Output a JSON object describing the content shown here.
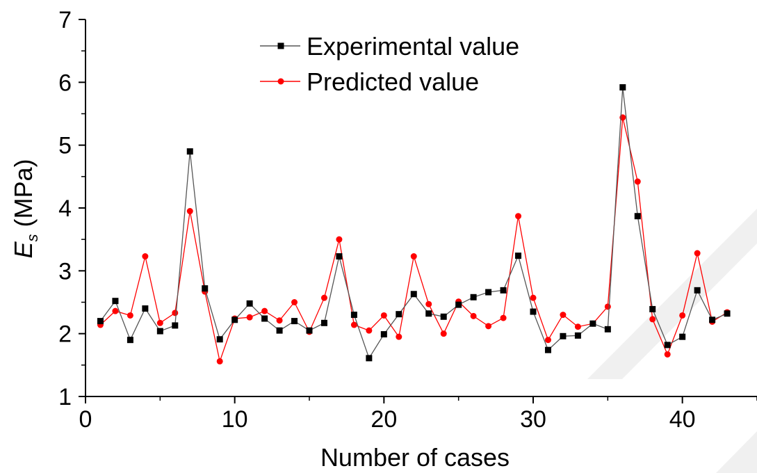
{
  "chart_data": {
    "type": "line",
    "xlabel": "Number of cases",
    "ylabel": {
      "symbol": "E",
      "subscript": "s",
      "unit": "(MPa)"
    },
    "xlim": [
      0,
      45
    ],
    "ylim": [
      1,
      7
    ],
    "xticks": [
      "0",
      "10",
      "20",
      "30",
      "40"
    ],
    "yticks": [
      "1",
      "2",
      "3",
      "4",
      "5",
      "6",
      "7"
    ],
    "grid": false,
    "legend_position": "top-center",
    "x": [
      1,
      2,
      3,
      4,
      5,
      6,
      7,
      8,
      9,
      10,
      11,
      12,
      13,
      14,
      15,
      16,
      17,
      18,
      19,
      20,
      21,
      22,
      23,
      24,
      25,
      26,
      27,
      28,
      29,
      30,
      31,
      32,
      33,
      34,
      35,
      36,
      37,
      38,
      39,
      40,
      41,
      42,
      43
    ],
    "series": [
      {
        "name": "Experimental value",
        "color": "#000000",
        "line_color": "#555555",
        "marker": "square",
        "values": [
          2.2,
          2.52,
          1.9,
          2.4,
          2.04,
          2.13,
          4.9,
          2.72,
          1.91,
          2.22,
          2.48,
          2.24,
          2.05,
          2.2,
          2.05,
          2.17,
          3.23,
          2.3,
          1.61,
          1.99,
          2.31,
          2.63,
          2.32,
          2.27,
          2.46,
          2.58,
          2.66,
          2.69,
          3.24,
          2.35,
          1.74,
          1.96,
          1.97,
          2.16,
          2.07,
          5.92,
          3.87,
          2.39,
          1.82,
          1.95,
          2.69,
          2.22,
          2.32
        ]
      },
      {
        "name": "Predicted value",
        "color": "#ff0000",
        "line_color": "#ff0000",
        "marker": "circle",
        "values": [
          2.14,
          2.36,
          2.29,
          3.23,
          2.17,
          2.33,
          3.95,
          2.67,
          1.56,
          2.24,
          2.26,
          2.36,
          2.21,
          2.5,
          2.03,
          2.57,
          3.5,
          2.14,
          2.05,
          2.29,
          1.95,
          3.23,
          2.47,
          2.0,
          2.51,
          2.28,
          2.12,
          2.25,
          3.87,
          2.57,
          1.9,
          2.3,
          2.11,
          2.16,
          2.43,
          5.44,
          4.42,
          2.23,
          1.67,
          2.29,
          3.28,
          2.19,
          2.34
        ]
      }
    ]
  }
}
